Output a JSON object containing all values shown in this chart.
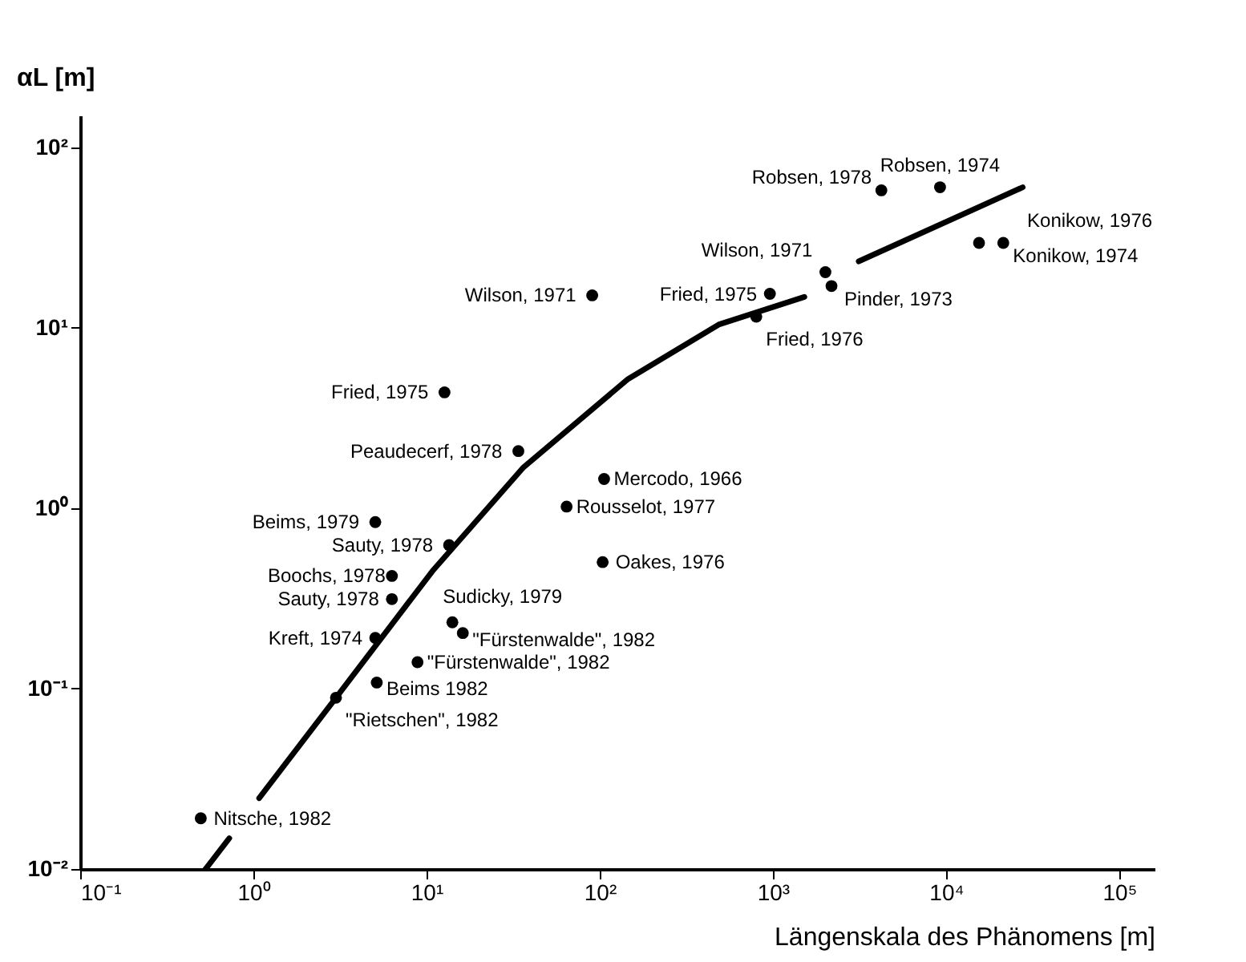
{
  "chart_data": {
    "type": "scatter",
    "xlabel": "Längenskala des Phänomens [m]",
    "ylabel": "αL [m]",
    "log": "xy",
    "grid": false,
    "xlim": [
      0.1,
      160000
    ],
    "ylim": [
      0.01,
      150
    ],
    "xticks": [
      {
        "value": 0.1,
        "label": "10⁻¹"
      },
      {
        "value": 1,
        "label": "10⁰"
      },
      {
        "value": 10,
        "label": "10¹"
      },
      {
        "value": 100,
        "label": "10²"
      },
      {
        "value": 1000,
        "label": "10³"
      },
      {
        "value": 10000,
        "label": "10⁴"
      },
      {
        "value": 100000,
        "label": "10⁵"
      }
    ],
    "yticks": [
      {
        "value": 0.01,
        "label": "10⁻²"
      },
      {
        "value": 0.1,
        "label": "10⁻¹"
      },
      {
        "value": 1,
        "label": "10⁰"
      },
      {
        "value": 10,
        "label": "10¹"
      },
      {
        "value": 100,
        "label": "10²"
      }
    ],
    "series": [
      {
        "type": "scatter",
        "color": "#000000",
        "marker": "circle",
        "x": [
          4230,
          9230,
          15500,
          21400,
          2010,
          2180,
          961,
          802,
          90.5,
          12.7,
          33.9,
          106,
          64.4,
          104,
          5.06,
          13.5,
          6.31,
          6.31,
          5.06,
          14.1,
          16.2,
          8.87,
          5.16,
          3.0,
          0.497
        ],
        "values": [
          57.7,
          60,
          29.5,
          29.5,
          20.3,
          17,
          15.4,
          11.5,
          15.1,
          4.38,
          2.07,
          1.45,
          1.02,
          0.502,
          0.837,
          0.624,
          0.421,
          0.313,
          0.191,
          0.233,
          0.203,
          0.14,
          0.108,
          0.089,
          0.0191
        ]
      },
      {
        "type": "line",
        "color": "#000000",
        "marker": "none",
        "line_style": "solid",
        "x": [
          0.53,
          0.726
        ],
        "values": [
          0.01,
          0.0148
        ]
      },
      {
        "type": "line",
        "color": "#000000",
        "marker": "none",
        "line_style": "solid",
        "x": [
          1.08,
          3.0,
          10.8,
          36,
          146,
          486,
          1520
        ],
        "values": [
          0.0247,
          0.089,
          0.447,
          1.67,
          5.2,
          10.4,
          14.8
        ]
      },
      {
        "type": "line",
        "color": "#000000",
        "marker": "none",
        "line_style": "solid",
        "x": [
          3130,
          27700
        ],
        "values": [
          23.3,
          60
        ]
      }
    ],
    "annotations": [
      {
        "text": "Robsen, 1978",
        "x": 4230,
        "y": 57.7
      },
      {
        "text": "Robsen, 1974",
        "x": 9230,
        "y": 60
      },
      {
        "text": "Konikow, 1976",
        "x": 15500,
        "y": 29.5
      },
      {
        "text": "Konikow, 1974",
        "x": 21400,
        "y": 29.5
      },
      {
        "text": "Wilson, 1971",
        "x": 2010,
        "y": 20.3
      },
      {
        "text": "Pinder, 1973",
        "x": 2180,
        "y": 17
      },
      {
        "text": "Fried, 1975",
        "x": 961,
        "y": 15.4
      },
      {
        "text": "Fried, 1976",
        "x": 802,
        "y": 11.5
      },
      {
        "text": "Wilson, 1971",
        "x": 90.5,
        "y": 15.1
      },
      {
        "text": "Fried, 1975",
        "x": 12.7,
        "y": 4.38
      },
      {
        "text": "Peaudecerf, 1978",
        "x": 33.9,
        "y": 2.07
      },
      {
        "text": "Mercodo, 1966",
        "x": 106,
        "y": 1.45
      },
      {
        "text": "Rousselot, 1977",
        "x": 64.4,
        "y": 1.02
      },
      {
        "text": "Oakes, 1976",
        "x": 104,
        "y": 0.502
      },
      {
        "text": "Beims, 1979",
        "x": 5.06,
        "y": 0.837
      },
      {
        "text": "Sauty, 1978",
        "x": 13.5,
        "y": 0.624
      },
      {
        "text": "Boochs, 1978",
        "x": 6.31,
        "y": 0.421
      },
      {
        "text": "Sauty, 1978",
        "x": 6.31,
        "y": 0.313
      },
      {
        "text": "Kreft, 1974",
        "x": 5.06,
        "y": 0.191
      },
      {
        "text": "Sudicky, 1979",
        "x": 14.1,
        "y": 0.233
      },
      {
        "text": "\"Fürstenwalde\", 1982",
        "x": 16.2,
        "y": 0.203
      },
      {
        "text": "\"Fürstenwalde\", 1982",
        "x": 8.87,
        "y": 0.14
      },
      {
        "text": "Beims 1982",
        "x": 5.16,
        "y": 0.108
      },
      {
        "text": "\"Rietschen\", 1982",
        "x": 3.0,
        "y": 0.089
      },
      {
        "text": "Nitsche, 1982",
        "x": 0.497,
        "y": 0.0191
      }
    ]
  }
}
